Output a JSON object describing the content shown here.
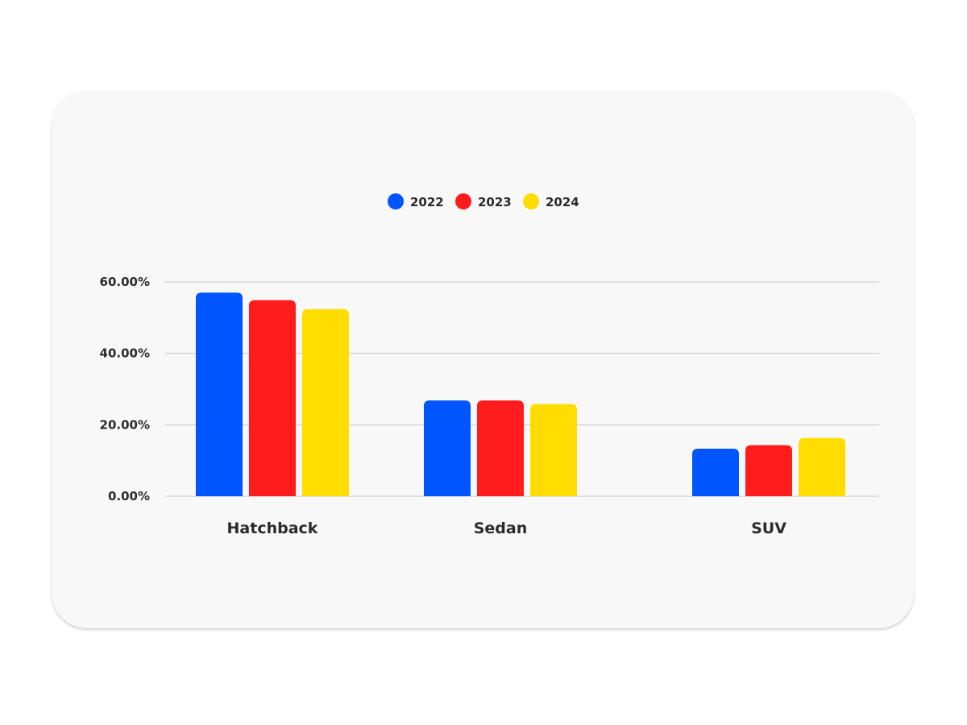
{
  "chart_data": {
    "type": "bar",
    "categories": [
      "Hatchback",
      "Sedan",
      "SUV"
    ],
    "series": [
      {
        "name": "2022",
        "color": "#0055ff",
        "values": [
          57.0,
          26.8,
          13.3
        ]
      },
      {
        "name": "2023",
        "color": "#ff1c1c",
        "values": [
          54.9,
          26.8,
          14.3
        ]
      },
      {
        "name": "2024",
        "color": "#ffdd00",
        "values": [
          52.4,
          25.8,
          16.3
        ]
      }
    ],
    "y_ticks": [
      "0.00%",
      "20.00%",
      "40.00%",
      "60.00%"
    ],
    "ylim": [
      0,
      60
    ],
    "grid": true,
    "legend_position": "top-center",
    "title": "",
    "xlabel": "",
    "ylabel": ""
  }
}
